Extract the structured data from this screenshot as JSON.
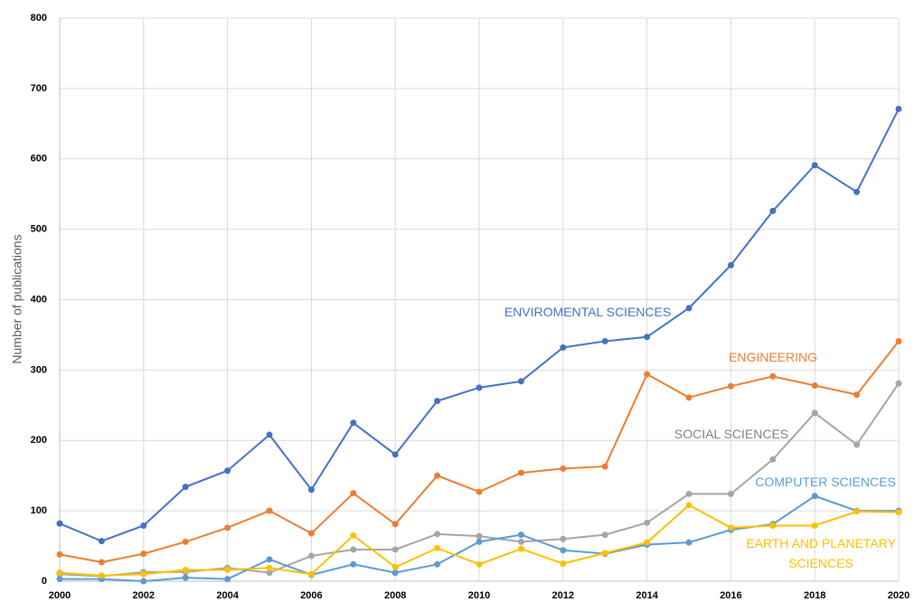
{
  "chart_data": {
    "type": "line",
    "y_label": "Number of publications",
    "x": [
      2000,
      2001,
      2002,
      2003,
      2004,
      2005,
      2006,
      2007,
      2008,
      2009,
      2010,
      2011,
      2012,
      2013,
      2014,
      2015,
      2016,
      2017,
      2018,
      2019,
      2020
    ],
    "xlim": [
      2000,
      2020
    ],
    "xticks": [
      2000,
      2002,
      2004,
      2006,
      2008,
      2010,
      2012,
      2014,
      2016,
      2018,
      2020
    ],
    "ylim": [
      0,
      800
    ],
    "yticks": [
      0,
      100,
      200,
      300,
      400,
      500,
      600,
      700,
      800
    ],
    "grid": true,
    "series": [
      {
        "name": "ENVIROMENTAL SCIENCES",
        "color": "#4472c4",
        "values": [
          82,
          57,
          79,
          134,
          157,
          208,
          130,
          225,
          180,
          256,
          275,
          284,
          332,
          341,
          347,
          388,
          449,
          526,
          591,
          553,
          671
        ]
      },
      {
        "name": "ENGINEERING",
        "color": "#ed7d31",
        "values": [
          38,
          27,
          39,
          56,
          76,
          100,
          68,
          125,
          81,
          150,
          127,
          154,
          160,
          163,
          294,
          261,
          277,
          291,
          278,
          265,
          341
        ]
      },
      {
        "name": "SOCIAL SCIENCES",
        "color": "#a5a5a5",
        "values": [
          10,
          7,
          13,
          13,
          19,
          12,
          36,
          45,
          45,
          67,
          64,
          56,
          60,
          66,
          83,
          124,
          124,
          173,
          239,
          194,
          281
        ]
      },
      {
        "name": "COMPUTER SCIENCES",
        "color": "#5b9bd5",
        "values": [
          3,
          3,
          0,
          5,
          3,
          31,
          9,
          24,
          12,
          24,
          56,
          66,
          44,
          39,
          52,
          55,
          73,
          81,
          121,
          100,
          100
        ]
      },
      {
        "name": "EARTH AND PLANETARY SCIENCES",
        "color": "#ffc000",
        "values": [
          12,
          8,
          10,
          16,
          16,
          19,
          10,
          65,
          20,
          47,
          24,
          46,
          25,
          40,
          55,
          108,
          76,
          79,
          79,
          99,
          98
        ]
      }
    ]
  }
}
